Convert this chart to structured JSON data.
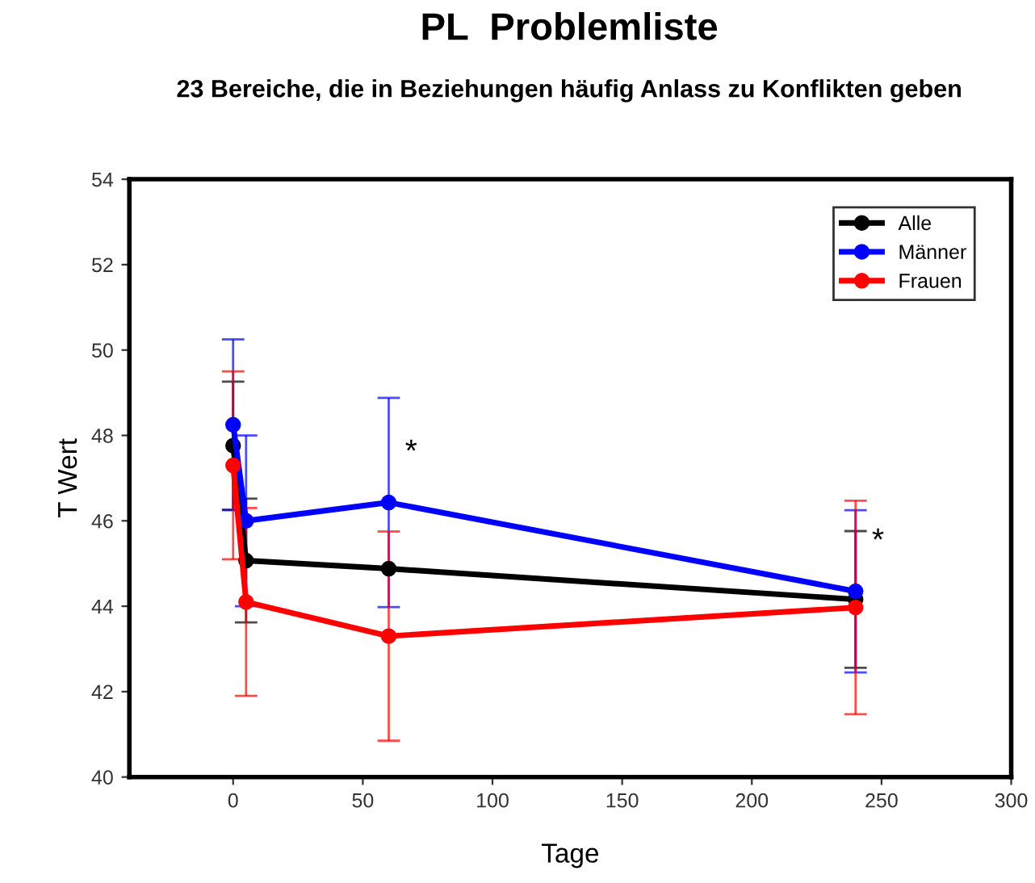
{
  "chart_data": {
    "type": "line",
    "title": "PL  Problemliste",
    "subtitle": "23 Bereiche, die in Beziehungen häufig Anlass zu Konflikten geben",
    "xlabel": "Tage",
    "ylabel": "T Wert",
    "xlim": [
      -40,
      300
    ],
    "xticks": [
      0,
      50,
      100,
      150,
      200,
      250,
      300
    ],
    "ylim": [
      40,
      54
    ],
    "yticks": [
      40,
      42,
      44,
      46,
      48,
      50,
      52,
      54
    ],
    "grid": false,
    "legend": "top right",
    "marker": "circle",
    "line_style": "solid",
    "annotations": [
      {
        "text": "*",
        "x": 60,
        "y": 46.43
      },
      {
        "text": "*",
        "x": 240,
        "y": 44.35
      }
    ],
    "series": [
      {
        "name": "Alle",
        "color": "#000000",
        "x": [
          0,
          5,
          60,
          240
        ],
        "values": [
          47.76,
          45.07,
          44.88,
          44.16
        ],
        "errors": [
          1.5,
          1.45,
          null,
          1.6
        ]
      },
      {
        "name": "Männer",
        "color": "#0000ff",
        "x": [
          0,
          5,
          60,
          240
        ],
        "values": [
          48.25,
          46.0,
          46.43,
          44.35
        ],
        "errors": [
          2.0,
          2.0,
          2.45,
          1.9
        ]
      },
      {
        "name": "Frauen",
        "color": "#ff0000",
        "x": [
          0,
          5,
          60,
          240
        ],
        "values": [
          47.3,
          44.1,
          43.3,
          43.97
        ],
        "errors": [
          2.2,
          2.2,
          2.45,
          2.5
        ]
      }
    ]
  }
}
